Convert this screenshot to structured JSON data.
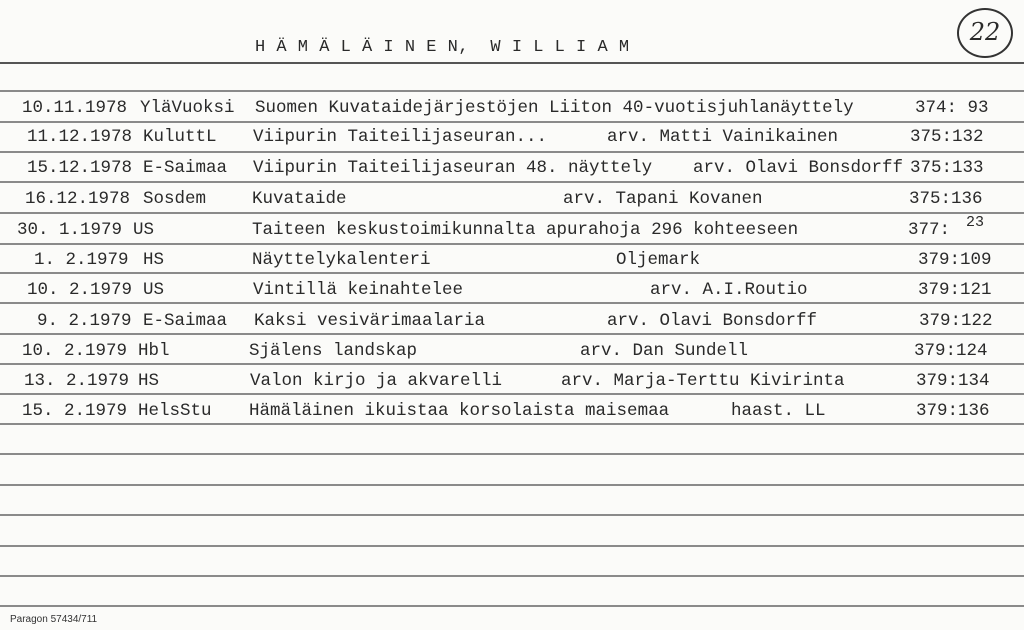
{
  "header": {
    "name": "H Ä M Ä L Ä I N E N,  W I L L I A M",
    "card_number": "22"
  },
  "entries": [
    {
      "date": "10.11.1978",
      "source": "YläVuoksi",
      "title": "Suomen Kuvataidejärjestöjen Liiton 40-vuotisjuhlanäyttely",
      "author": "",
      "ref": "374: 93"
    },
    {
      "date": "11.12.1978",
      "source": "KuluttL",
      "title": "Viipurin Taiteilijaseuran...",
      "author": "arv. Matti Vainikainen",
      "ref": "375:132"
    },
    {
      "date": "15.12.1978",
      "source": "E-Saimaa",
      "title": "Viipurin Taiteilijaseuran 48. näyttely",
      "author": "arv. Olavi Bonsdorff",
      "ref": "375:133"
    },
    {
      "date": "16.12.1978",
      "source": "Sosdem",
      "title": "Kuvataide",
      "author": "arv. Tapani Kovanen",
      "ref": "375:136"
    },
    {
      "date": "30. 1.1979",
      "source": "US",
      "title": "Taiteen keskustoimikunnalta apurahoja 296 kohteeseen",
      "author": "",
      "ref": "377:",
      "ref_sup": "23"
    },
    {
      "date": "1. 2.1979",
      "source": "HS",
      "title": "Näyttelykalenteri",
      "author": "Oljemark",
      "ref": "379:109"
    },
    {
      "date": "10. 2.1979",
      "source": "US",
      "title": "Vintillä keinahtelee",
      "author": "arv. A.I.Routio",
      "ref": "379:121"
    },
    {
      "date": "9. 2.1979",
      "source": "E-Saimaa",
      "title": "Kaksi vesivärimaalaria",
      "author": "arv. Olavi Bonsdorff",
      "ref": "379:122"
    },
    {
      "date": "10. 2.1979",
      "source": "Hbl",
      "title": "Själens landskap",
      "author": "arv. Dan Sundell",
      "ref": "379:124"
    },
    {
      "date": "13. 2.1979",
      "source": "HS",
      "title": "Valon kirjo ja akvarelli",
      "author": "arv. Marja-Terttu Kivirinta",
      "ref": "379:134"
    },
    {
      "date": "15. 2.1979",
      "source": "HelsStu",
      "title": "Hämäläinen ikuistaa korsolaista maisemaa",
      "author": "haast. LL",
      "ref": "379:136"
    }
  ],
  "footer": {
    "printer": "Paragon 57434/711"
  }
}
